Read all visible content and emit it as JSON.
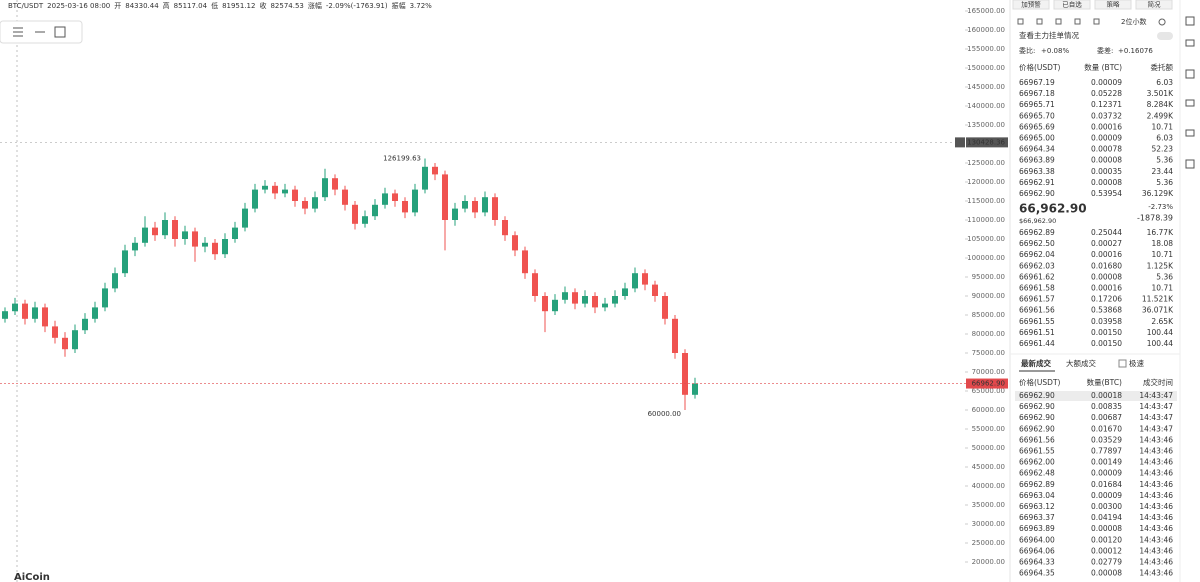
{
  "header": {
    "items": [
      "BTC/USDT",
      "2025-03-16 08:00",
      "开",
      "84330.44",
      "高",
      "85117.04",
      "低",
      "81951.12",
      "收",
      "82574.53",
      "涨幅",
      "-2.09%(-1763.91)",
      "振幅",
      "3.72%"
    ]
  },
  "chart": {
    "type": "candlestick",
    "candles": [
      [
        84000,
        87000,
        83000,
        86000
      ],
      [
        86000,
        89500,
        85000,
        88000
      ],
      [
        88000,
        89000,
        82500,
        84000
      ],
      [
        84000,
        88500,
        83000,
        87000
      ],
      [
        87000,
        88000,
        80500,
        82000
      ],
      [
        82000,
        83500,
        77500,
        79000
      ],
      [
        79000,
        80500,
        74000,
        76000
      ],
      [
        76000,
        82500,
        75000,
        81000
      ],
      [
        81000,
        85500,
        80000,
        84000
      ],
      [
        84000,
        88500,
        83000,
        87000
      ],
      [
        87000,
        93500,
        86000,
        92000
      ],
      [
        92000,
        97500,
        91000,
        96000
      ],
      [
        96000,
        103500,
        95000,
        102000
      ],
      [
        102000,
        105500,
        100500,
        104000
      ],
      [
        104000,
        111000,
        103000,
        108000
      ],
      [
        108000,
        109500,
        104500,
        106000
      ],
      [
        106000,
        112000,
        105000,
        110000
      ],
      [
        110000,
        111000,
        103000,
        105000
      ],
      [
        105000,
        108500,
        103500,
        107000
      ],
      [
        107000,
        108000,
        99000,
        103000
      ],
      [
        103000,
        105500,
        101500,
        104000
      ],
      [
        104000,
        105000,
        99500,
        101000
      ],
      [
        101000,
        106500,
        100000,
        105000
      ],
      [
        105000,
        109500,
        104000,
        108000
      ],
      [
        108000,
        114500,
        107000,
        113000
      ],
      [
        113000,
        119500,
        112000,
        118000
      ],
      [
        118000,
        120500,
        117000,
        119000
      ],
      [
        119000,
        120000,
        115500,
        117000
      ],
      [
        117000,
        119500,
        116000,
        118000
      ],
      [
        118000,
        119000,
        113500,
        115000
      ],
      [
        115000,
        116000,
        111500,
        113000
      ],
      [
        113000,
        117500,
        112000,
        116000
      ],
      [
        116000,
        123500,
        115000,
        121000
      ],
      [
        121000,
        122000,
        116500,
        118000
      ],
      [
        118000,
        119000,
        112500,
        114000
      ],
      [
        114000,
        115000,
        107500,
        109000
      ],
      [
        109000,
        112500,
        108000,
        111000
      ],
      [
        111000,
        115500,
        110000,
        114000
      ],
      [
        114000,
        118500,
        113000,
        117000
      ],
      [
        117000,
        118000,
        113500,
        115000
      ],
      [
        115000,
        116000,
        110500,
        112000
      ],
      [
        112000,
        119500,
        111000,
        118000
      ],
      [
        118000,
        126199.63,
        117000,
        124000
      ],
      [
        124000,
        125000,
        120500,
        122000
      ],
      [
        122000,
        123000,
        102000,
        110000
      ],
      [
        110000,
        114500,
        108500,
        113000
      ],
      [
        113000,
        116500,
        112000,
        115000
      ],
      [
        115000,
        116000,
        110500,
        112000
      ],
      [
        112000,
        117500,
        111000,
        116000
      ],
      [
        116000,
        117000,
        108500,
        110000
      ],
      [
        110000,
        111000,
        104500,
        106000
      ],
      [
        106000,
        107000,
        100500,
        102000
      ],
      [
        102000,
        103000,
        94500,
        96000
      ],
      [
        96000,
        97000,
        88500,
        90000
      ],
      [
        90000,
        91000,
        80500,
        86000
      ],
      [
        86000,
        90500,
        85000,
        89000
      ],
      [
        89000,
        92500,
        88000,
        91000
      ],
      [
        91000,
        92000,
        86500,
        88000
      ],
      [
        88000,
        91500,
        87000,
        90000
      ],
      [
        90000,
        91000,
        85500,
        87000
      ],
      [
        87000,
        89500,
        86000,
        88000
      ],
      [
        88000,
        91500,
        87000,
        90000
      ],
      [
        90000,
        93500,
        89000,
        92000
      ],
      [
        92000,
        97500,
        91000,
        96000
      ],
      [
        96000,
        97000,
        91500,
        93000
      ],
      [
        93000,
        94000,
        88500,
        90000
      ],
      [
        90000,
        91000,
        82500,
        84000
      ],
      [
        84000,
        85000,
        73500,
        75000
      ],
      [
        75000,
        76000,
        60000,
        64000
      ],
      [
        64000,
        68500,
        63000,
        66962.9
      ]
    ],
    "up_color": "#26a17b",
    "down_color": "#ef5350",
    "ylim": [
      14737,
      167895
    ],
    "yticks": [
      {
        "value": 165000,
        "label": "165000.00"
      },
      {
        "value": 160000,
        "label": "160000.00"
      },
      {
        "value": 155000,
        "label": "155000.00"
      },
      {
        "value": 150000,
        "label": "150000.00"
      },
      {
        "value": 145000,
        "label": "145000.00"
      },
      {
        "value": 140000,
        "label": "140000.00"
      },
      {
        "value": 135000,
        "label": "135000.00"
      },
      {
        "value": 125000,
        "label": "125000.00"
      },
      {
        "value": 120000,
        "label": "120000.00"
      },
      {
        "value": 115000,
        "label": "115000.00"
      },
      {
        "value": 110000,
        "label": "110000.00"
      },
      {
        "value": 105000,
        "label": "105000.00"
      },
      {
        "value": 100000,
        "label": "100000.00"
      },
      {
        "value": 95000,
        "label": "95000.00"
      },
      {
        "value": 90000,
        "label": "90000.00"
      },
      {
        "value": 85000,
        "label": "85000.00"
      },
      {
        "value": 80000,
        "label": "80000.00"
      },
      {
        "value": 75000,
        "label": "75000.00"
      },
      {
        "value": 70000,
        "label": "70000.00"
      },
      {
        "value": 65000,
        "label": "65000.00"
      },
      {
        "value": 60000,
        "label": "60000.00"
      },
      {
        "value": 55000,
        "label": "55000.00"
      },
      {
        "value": 50000,
        "label": "50000.00"
      },
      {
        "value": 45000,
        "label": "45000.00"
      },
      {
        "value": 40000,
        "label": "40000.00"
      },
      {
        "value": 35000,
        "label": "35000.00"
      },
      {
        "value": 30000,
        "label": "30000.00"
      },
      {
        "value": 25000,
        "label": "25000.00"
      },
      {
        "value": 20000,
        "label": "20000.00"
      }
    ],
    "crosshair": {
      "value": 130428.36,
      "label": "130428.36"
    },
    "last_price": {
      "value": 66962.9,
      "label": "66962.90"
    },
    "max_mark": {
      "value": 126199.63,
      "label": "126199.63"
    },
    "min_mark": {
      "value": 60000,
      "label": "60000.00"
    }
  },
  "logo": "AiCoin",
  "panel": {
    "tabs": [
      "加预警",
      "已自选",
      "策略",
      "简况"
    ],
    "precision": "2位小数",
    "depth_link": "查看主力挂单情况",
    "ratio_label": "委比:",
    "ratio": "+0.08%",
    "diff_label": "委差:",
    "diff": "+0.16076",
    "book_columns": [
      "价格(USDT)",
      "数量 (BTC)",
      "委托额"
    ],
    "asks": [
      [
        "66967.19",
        "0.00009",
        "6.03"
      ],
      [
        "66967.18",
        "0.05228",
        "3.501K"
      ],
      [
        "66965.71",
        "0.12371",
        "8.284K"
      ],
      [
        "66965.70",
        "0.03732",
        "2.499K"
      ],
      [
        "66965.69",
        "0.00016",
        "10.71"
      ],
      [
        "66965.00",
        "0.00009",
        "6.03"
      ],
      [
        "66964.34",
        "0.00078",
        "52.23"
      ],
      [
        "66963.89",
        "0.00008",
        "5.36"
      ],
      [
        "66963.38",
        "0.00035",
        "23.44"
      ],
      [
        "66962.91",
        "0.00008",
        "5.36"
      ],
      [
        "66962.90",
        "0.53954",
        "36.129K"
      ]
    ],
    "last": {
      "price": "66,962.90",
      "usd": "$66,962.90",
      "change_pct": "-2.73%",
      "change": "-1878.39"
    },
    "bids": [
      [
        "66962.89",
        "0.25044",
        "16.77K"
      ],
      [
        "66962.50",
        "0.00027",
        "18.08"
      ],
      [
        "66962.04",
        "0.00016",
        "10.71"
      ],
      [
        "66962.03",
        "0.01680",
        "1.125K"
      ],
      [
        "66961.62",
        "0.00008",
        "5.36"
      ],
      [
        "66961.58",
        "0.00016",
        "10.71"
      ],
      [
        "66961.57",
        "0.17206",
        "11.521K"
      ],
      [
        "66961.56",
        "0.53868",
        "36.071K"
      ],
      [
        "66961.55",
        "0.03958",
        "2.65K"
      ],
      [
        "66961.51",
        "0.00150",
        "100.44"
      ],
      [
        "66961.44",
        "0.00150",
        "100.44"
      ]
    ],
    "trade_tabs": [
      "最新成交",
      "大额成交"
    ],
    "fast": "极速",
    "trade_columns": [
      "价格(USDT)",
      "数量(BTC)",
      "成交时间"
    ],
    "trades": [
      {
        "price": "66962.90",
        "qty": "0.00018",
        "time": "14:43:47",
        "side": "buy"
      },
      {
        "price": "66962.90",
        "qty": "0.00835",
        "time": "14:43:47",
        "side": "buy"
      },
      {
        "price": "66962.90",
        "qty": "0.00687",
        "time": "14:43:47",
        "side": "buy"
      },
      {
        "price": "66962.90",
        "qty": "0.01670",
        "time": "14:43:47",
        "side": "buy"
      },
      {
        "price": "66961.56",
        "qty": "0.03529",
        "time": "14:43:46",
        "side": "buy"
      },
      {
        "price": "66961.55",
        "qty": "0.77897",
        "time": "14:43:46",
        "side": "sell"
      },
      {
        "price": "66962.00",
        "qty": "0.00149",
        "time": "14:43:46",
        "side": "sell"
      },
      {
        "price": "66962.48",
        "qty": "0.00009",
        "time": "14:43:46",
        "side": "sell"
      },
      {
        "price": "66962.89",
        "qty": "0.01684",
        "time": "14:43:46",
        "side": "sell"
      },
      {
        "price": "66963.04",
        "qty": "0.00009",
        "time": "14:43:46",
        "side": "sell"
      },
      {
        "price": "66963.12",
        "qty": "0.00300",
        "time": "14:43:46",
        "side": "sell"
      },
      {
        "price": "66963.37",
        "qty": "0.04194",
        "time": "14:43:46",
        "side": "sell"
      },
      {
        "price": "66963.89",
        "qty": "0.00008",
        "time": "14:43:46",
        "side": "sell"
      },
      {
        "price": "66964.00",
        "qty": "0.00120",
        "time": "14:43:46",
        "side": "sell"
      },
      {
        "price": "66964.06",
        "qty": "0.00012",
        "time": "14:43:46",
        "side": "sell"
      },
      {
        "price": "66964.33",
        "qty": "0.02779",
        "time": "14:43:46",
        "side": "sell"
      },
      {
        "price": "66964.35",
        "qty": "0.00008",
        "time": "14:43:46",
        "side": "sell"
      }
    ]
  }
}
